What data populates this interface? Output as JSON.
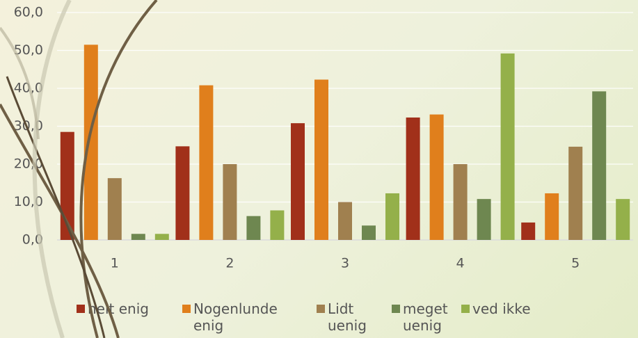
{
  "chart_data": {
    "type": "bar",
    "categories": [
      "1",
      "2",
      "3",
      "4",
      "5"
    ],
    "series": [
      {
        "name": "helt enig",
        "color": "#a1301a",
        "values": [
          28.5,
          24.7,
          30.8,
          32.3,
          4.6
        ]
      },
      {
        "name": "Nogenlunde enig",
        "color": "#e07f1c",
        "values": [
          51.5,
          40.8,
          42.3,
          33.1,
          12.3
        ]
      },
      {
        "name": "Lidt uenig",
        "color": "#a0804f",
        "values": [
          16.3,
          20.0,
          10.0,
          20.0,
          24.6
        ]
      },
      {
        "name": "meget uenig",
        "color": "#6e8750",
        "values": [
          1.6,
          6.3,
          3.8,
          10.8,
          39.2
        ]
      },
      {
        "name": "ved ikke",
        "color": "#94b04a",
        "values": [
          1.6,
          7.8,
          12.3,
          49.2,
          10.8
        ]
      }
    ],
    "ylim": [
      0,
      60
    ],
    "yticks": [
      {
        "value": 0,
        "label": "0,0"
      },
      {
        "value": 10,
        "label": "10,0"
      },
      {
        "value": 20,
        "label": "20,0"
      },
      {
        "value": 30,
        "label": "30,0"
      },
      {
        "value": 40,
        "label": "40,0"
      },
      {
        "value": 50,
        "label": "50,0"
      },
      {
        "value": 60,
        "label": "60,0"
      }
    ],
    "grid": true,
    "legend": "bottom"
  }
}
